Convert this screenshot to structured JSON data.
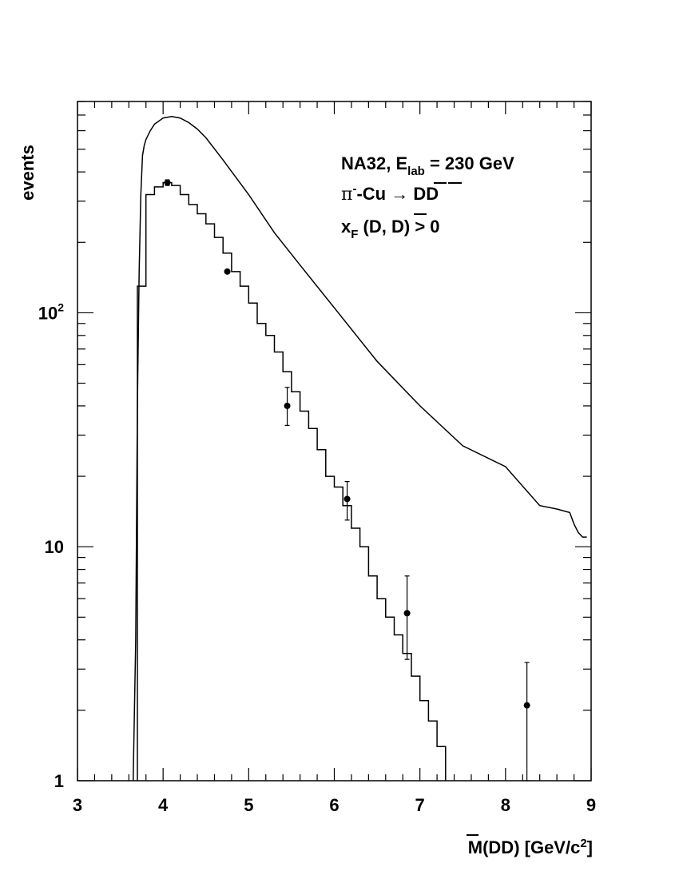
{
  "chart_data": {
    "type": "line",
    "title": "",
    "xlabel": "M(DD̄) [GeV/c²]",
    "xlabel_parts": {
      "a": "M(D",
      "b": "D",
      "c": ") [GeV/c",
      "d": "2",
      "e": "]"
    },
    "ylabel": "events",
    "xlim": [
      3,
      9
    ],
    "ylim": [
      1,
      800
    ],
    "yscale": "log",
    "grid": false,
    "x_ticks": [
      "3",
      "4",
      "5",
      "6",
      "7",
      "8",
      "9"
    ],
    "y_ticks": [
      {
        "value": 1,
        "base": "1",
        "sup": ""
      },
      {
        "value": 10,
        "base": "10",
        "sup": ""
      },
      {
        "value": 100,
        "base": "10",
        "sup": "2"
      }
    ],
    "annotations": {
      "line1": {
        "a": "NA32, E",
        "b": "lab",
        "c": " = 230 GeV"
      },
      "line2": {
        "a": "π",
        "b": "-",
        "c": "-Cu → D",
        "d": "D"
      },
      "line3": {
        "a": "x",
        "b": "F",
        "c": " (D, ",
        "d": "D",
        "e": ") > 0"
      }
    },
    "series": [
      {
        "kind": "curve",
        "x": [
          3.65,
          3.68,
          3.7,
          3.72,
          3.74,
          3.76,
          3.78,
          3.8,
          3.85,
          3.9,
          4.0,
          4.1,
          4.2,
          4.3,
          4.4,
          4.5,
          4.7,
          5.0,
          5.3,
          5.6,
          6.0,
          6.5,
          7.0,
          7.5,
          8.0,
          8.4,
          8.6,
          8.75,
          8.8,
          8.85,
          8.9,
          8.95
        ],
        "values": [
          1,
          4,
          40,
          150,
          320,
          470,
          520,
          550,
          600,
          640,
          680,
          690,
          680,
          650,
          610,
          560,
          450,
          320,
          220,
          160,
          105,
          62,
          40,
          27,
          22,
          15,
          14.5,
          14,
          12.5,
          11.5,
          11,
          11
        ]
      },
      {
        "kind": "histogram",
        "edges": [
          3.7,
          3.8,
          3.9,
          4.0,
          4.1,
          4.2,
          4.3,
          4.4,
          4.5,
          4.6,
          4.7,
          4.8,
          4.9,
          5.0,
          5.1,
          5.2,
          5.3,
          5.4,
          5.5,
          5.6,
          5.7,
          5.8,
          5.9,
          6.0,
          6.1,
          6.2,
          6.3,
          6.4,
          6.5,
          6.6,
          6.7,
          6.8,
          6.9,
          7.0,
          7.1,
          7.2,
          7.3
        ],
        "values": [
          130,
          320,
          345,
          360,
          350,
          320,
          290,
          265,
          240,
          210,
          180,
          150,
          130,
          110,
          90,
          80,
          68,
          56,
          46,
          38,
          32,
          26,
          20,
          18,
          15,
          12,
          10,
          7.5,
          6,
          5,
          4.2,
          3.5,
          2.8,
          2.2,
          1.8,
          1.4
        ]
      },
      {
        "kind": "points",
        "x": [
          4.05,
          4.75,
          5.45,
          6.15,
          6.85,
          8.25
        ],
        "values": [
          360,
          150,
          40,
          16,
          5.2,
          2.1
        ],
        "err_high": [
          370,
          150,
          48,
          19,
          7.5,
          3.2
        ],
        "err_low": [
          350,
          150,
          33,
          13,
          3.3,
          1.0
        ]
      }
    ]
  }
}
